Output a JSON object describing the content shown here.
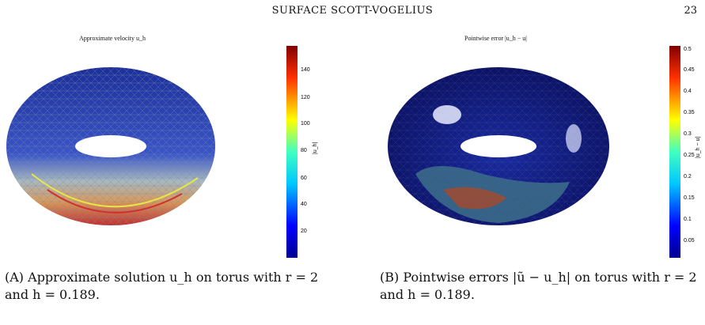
{
  "header": {
    "running_title": "SURFACE SCOTT-VOGELIUS",
    "page_number": "23"
  },
  "figure_a": {
    "title": "Approximate velocity u_h",
    "colorbar": {
      "ticks": [
        "140",
        "120",
        "100",
        "80",
        "60",
        "40",
        "20"
      ],
      "label": "|u_h|"
    },
    "caption_tag": "(A)",
    "caption_line1": " Approximate solution u_h on torus with r = 2",
    "caption_line2": "and h = 0.189."
  },
  "figure_b": {
    "title": "Pointwise error |u_h − u|",
    "colorbar": {
      "ticks": [
        "0.5",
        "0.45",
        "0.4",
        "0.35",
        "0.3",
        "0.25",
        "0.2",
        "0.15",
        "0.1",
        "0.05"
      ],
      "label": "|u_h − u|"
    },
    "caption_tag": "(B)",
    "caption_line1": " Pointwise errors |ũ − u_h| on torus with r = 2",
    "caption_line2": "and h = 0.189."
  }
}
